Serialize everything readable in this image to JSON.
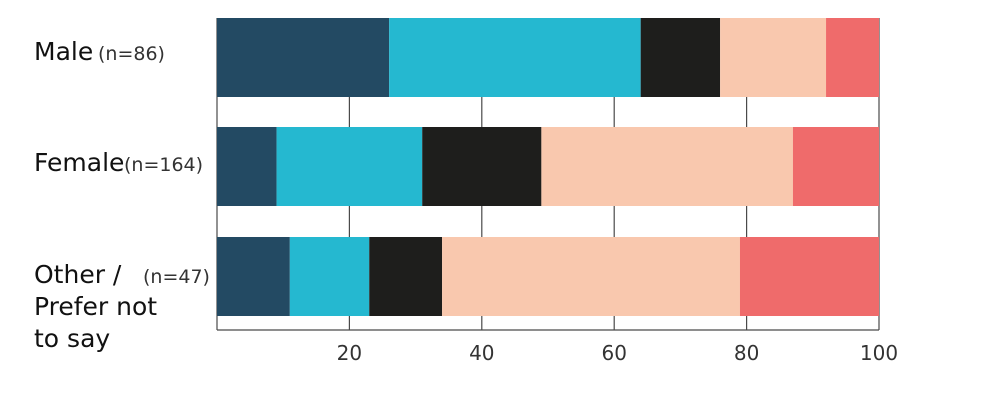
{
  "chart_data": {
    "type": "bar",
    "orientation": "horizontal",
    "stacked": true,
    "categories": [
      {
        "label_lines": [
          "Male"
        ],
        "n_label": "(n=86)"
      },
      {
        "label_lines": [
          "Female"
        ],
        "n_label": "(n=164)"
      },
      {
        "label_lines": [
          "Other /",
          "Prefer not",
          "to say"
        ],
        "n_label": "(n=47)"
      }
    ],
    "series": [
      {
        "color": "#234a63",
        "values": [
          26,
          9,
          11
        ]
      },
      {
        "color": "#25b8d0",
        "values": [
          38,
          22,
          12
        ]
      },
      {
        "color": "#1e1e1c",
        "values": [
          12,
          18,
          11
        ]
      },
      {
        "color": "#f9c8ae",
        "values": [
          16,
          38,
          45
        ]
      },
      {
        "color": "#ef6b6b",
        "values": [
          8,
          13,
          21
        ]
      }
    ],
    "xlim": [
      0,
      100
    ],
    "xticks": [
      0,
      20,
      40,
      60,
      80,
      100
    ],
    "xtick_labels": [
      "20",
      "40",
      "60",
      "80",
      "100"
    ],
    "grid": true,
    "title": "",
    "xlabel": "",
    "ylabel": ""
  }
}
